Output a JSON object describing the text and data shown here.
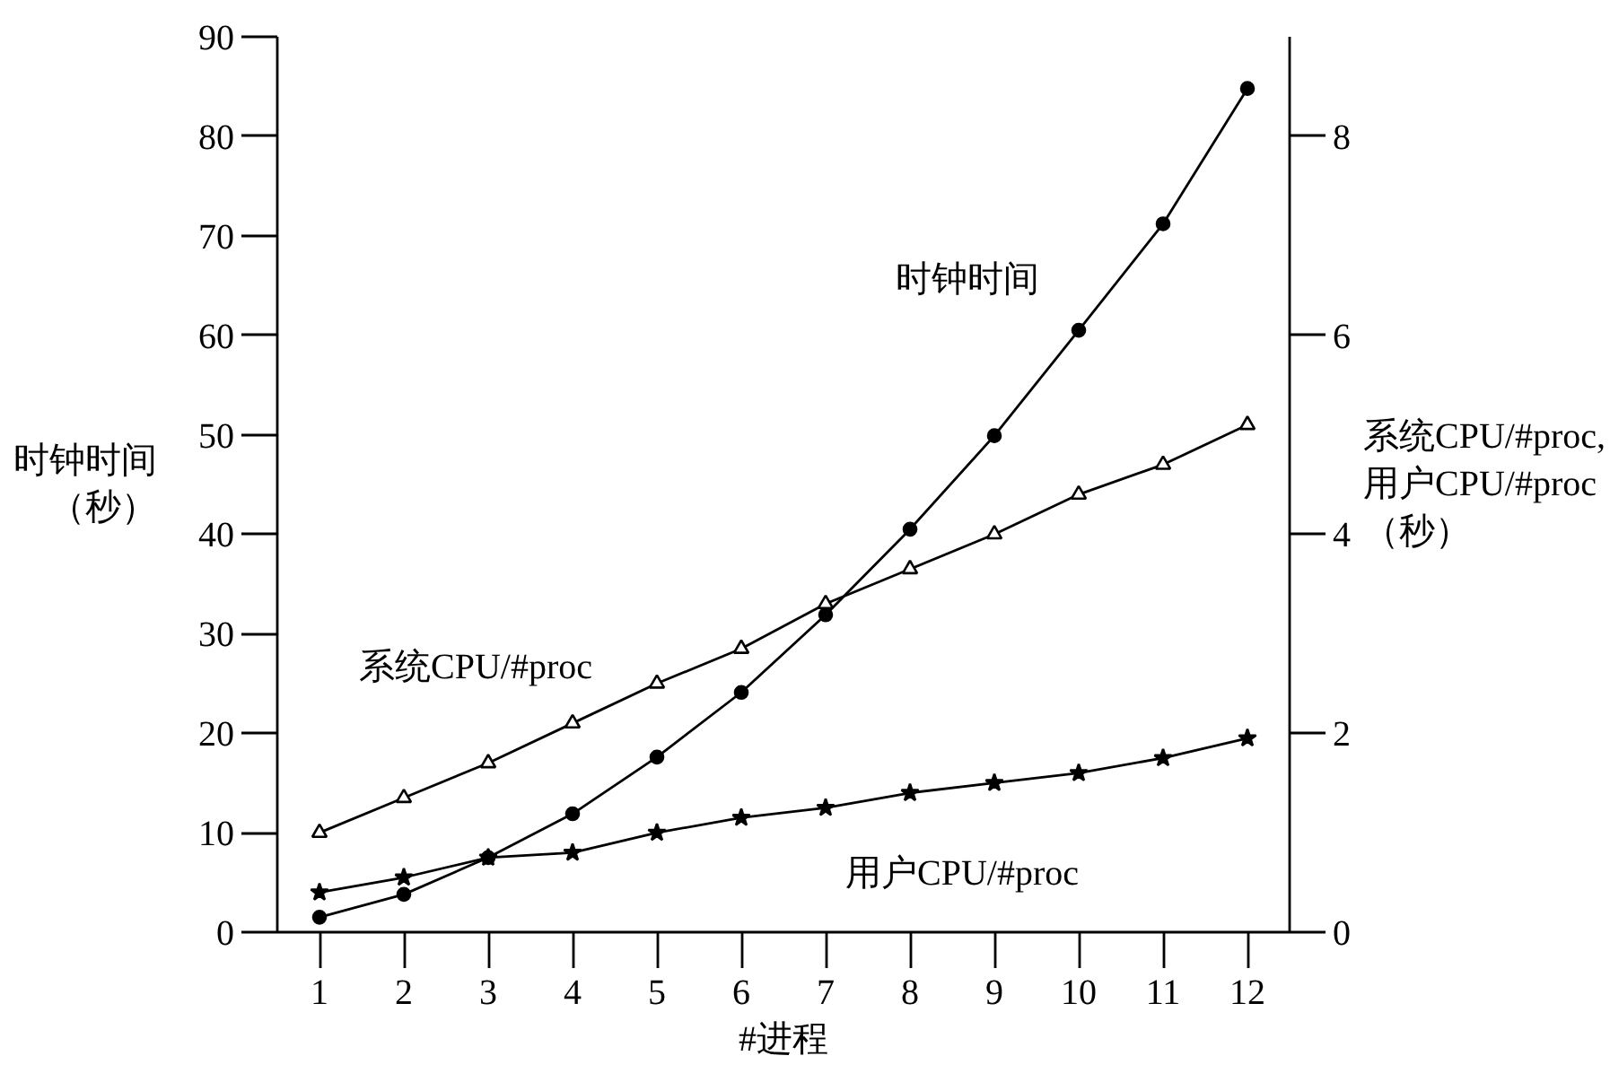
{
  "chart_data": {
    "type": "line",
    "xlabel": "#进程",
    "ylabel": "时钟时间（秒）",
    "y2label": "系统CPU/#proc,\n用户CPU/#proc\n（秒）",
    "x": [
      1,
      2,
      3,
      4,
      5,
      6,
      7,
      8,
      9,
      10,
      11,
      12
    ],
    "xlim": [
      0.5,
      12.5
    ],
    "xticks": [
      1,
      2,
      3,
      4,
      5,
      6,
      7,
      8,
      9,
      10,
      11,
      12
    ],
    "ylim": [
      0,
      90
    ],
    "yticks": [
      0,
      10,
      20,
      30,
      40,
      50,
      60,
      70,
      80,
      90
    ],
    "y2lim": [
      0,
      9
    ],
    "y2ticks": [
      0,
      2,
      4,
      6,
      8
    ],
    "grid": false,
    "legend": false,
    "series": [
      {
        "name": "时钟时间",
        "color": "#000000",
        "marker": "circle",
        "values": [
          1.5,
          3.8,
          7.5,
          11.9,
          17.6,
          24.1,
          31.9,
          40.5,
          49.9,
          60.5,
          71.2,
          84.8
        ]
      },
      {
        "name": "系统CPU/#proc",
        "color": "#000000",
        "marker": "triangle",
        "axis": "y2",
        "values": [
          1.0,
          1.35,
          1.7,
          2.1,
          2.5,
          2.85,
          3.3,
          3.65,
          4.0,
          4.4,
          4.7,
          5.1
        ]
      },
      {
        "name": "用户CPU/#proc",
        "color": "#000000",
        "marker": "star",
        "axis": "y2",
        "values": [
          0.4,
          0.55,
          0.75,
          0.8,
          1.0,
          1.15,
          1.25,
          1.4,
          1.5,
          1.6,
          1.75,
          1.95
        ]
      }
    ]
  }
}
